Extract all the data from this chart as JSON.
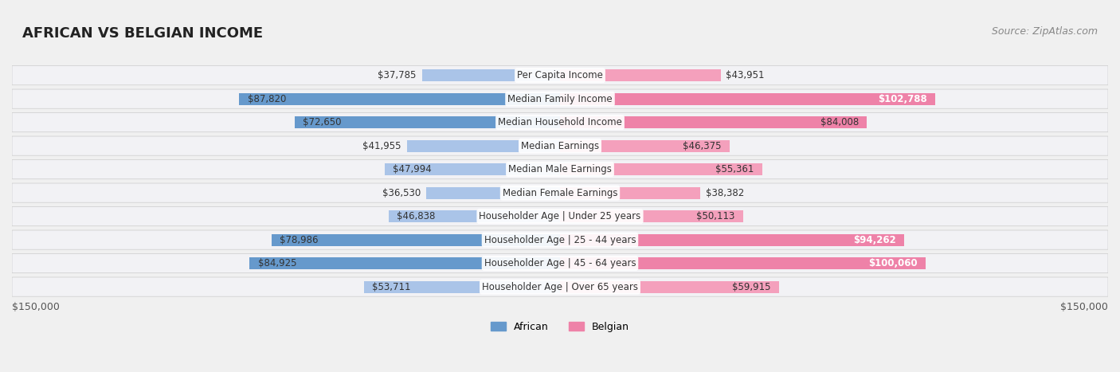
{
  "title": "AFRICAN VS BELGIAN INCOME",
  "source": "Source: ZipAtlas.com",
  "categories": [
    "Per Capita Income",
    "Median Family Income",
    "Median Household Income",
    "Median Earnings",
    "Median Male Earnings",
    "Median Female Earnings",
    "Householder Age | Under 25 years",
    "Householder Age | 25 - 44 years",
    "Householder Age | 45 - 64 years",
    "Householder Age | Over 65 years"
  ],
  "african_values": [
    37785,
    87820,
    72650,
    41955,
    47994,
    36530,
    46838,
    78986,
    84925,
    53711
  ],
  "belgian_values": [
    43951,
    102788,
    84008,
    46375,
    55361,
    38382,
    50113,
    94262,
    100060,
    59915
  ],
  "african_labels": [
    "$37,785",
    "$87,820",
    "$72,650",
    "$41,955",
    "$47,994",
    "$36,530",
    "$46,838",
    "$78,986",
    "$84,925",
    "$53,711"
  ],
  "belgian_labels": [
    "$43,951",
    "$102,788",
    "$84,008",
    "$46,375",
    "$55,361",
    "$38,382",
    "$50,113",
    "$94,262",
    "$100,060",
    "$59,915"
  ],
  "african_color_light": "#aac4e8",
  "african_color_dark": "#6699cc",
  "belgian_color_light": "#f4a0bc",
  "belgian_color_dark": "#ee82a8",
  "max_value": 150000,
  "axis_label_left": "$150,000",
  "axis_label_right": "$150,000",
  "background_color": "#f0f0f0",
  "row_bg_color": "#f8f8f8",
  "title_fontsize": 13,
  "source_fontsize": 9,
  "bar_label_fontsize": 8.5,
  "category_fontsize": 8.5,
  "legend_fontsize": 9
}
